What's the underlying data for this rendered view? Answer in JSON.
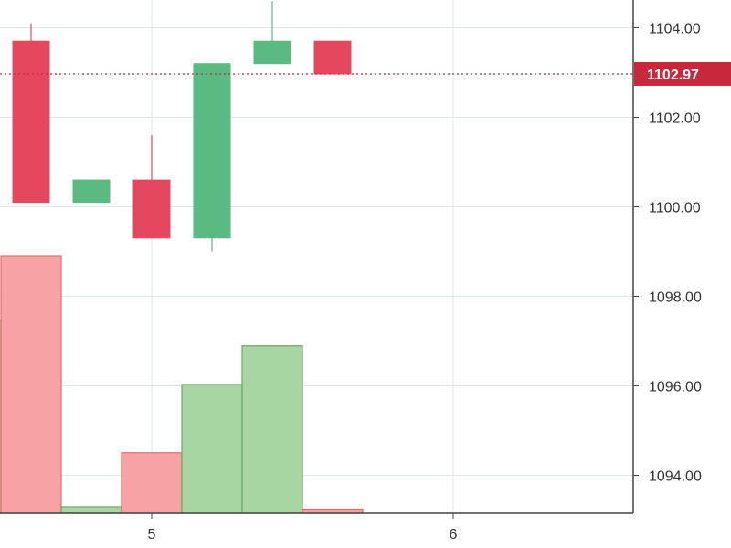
{
  "chart_data": {
    "type": "candlestick",
    "y_axis": {
      "range": [
        1093.2,
        1106.0
      ],
      "ticks": [
        {
          "value": 1094,
          "label": "1094.00"
        },
        {
          "value": 1096,
          "label": "1096.00"
        },
        {
          "value": 1098,
          "label": "1098.00"
        },
        {
          "value": 1100,
          "label": "1100.00"
        },
        {
          "value": 1102,
          "label": "1102.00"
        },
        {
          "value": 1104,
          "label": "1104.00"
        }
      ],
      "position": "right"
    },
    "x_axis": {
      "ticks": [
        {
          "value": 5,
          "label": "5"
        },
        {
          "value": 6,
          "label": "6"
        }
      ]
    },
    "grid": true,
    "last_price": {
      "value": 1102.97,
      "label": "1102.97"
    },
    "candles": [
      {
        "x": 4.6,
        "open": 1103.7,
        "high": 1104.1,
        "low": 1100.1,
        "close": 1100.1
      },
      {
        "x": 4.8,
        "open": 1100.1,
        "high": 1100.6,
        "low": 1100.1,
        "close": 1100.6
      },
      {
        "x": 5.0,
        "open": 1100.6,
        "high": 1101.6,
        "low": 1099.3,
        "close": 1099.3
      },
      {
        "x": 5.2,
        "open": 1099.3,
        "high": 1103.2,
        "low": 1099.0,
        "close": 1103.2
      },
      {
        "x": 5.4,
        "open": 1103.2,
        "high": 1104.6,
        "low": 1103.2,
        "close": 1103.7
      },
      {
        "x": 5.6,
        "open": 1103.7,
        "high": 1103.7,
        "low": 1102.97,
        "close": 1102.97
      }
    ],
    "volume_bars": [
      {
        "x": 4.4,
        "value": 0.75,
        "direction": "up"
      },
      {
        "x": 4.6,
        "value": 1.0,
        "direction": "down"
      },
      {
        "x": 4.8,
        "value": 0.025,
        "direction": "up"
      },
      {
        "x": 5.0,
        "value": 0.235,
        "direction": "down"
      },
      {
        "x": 5.2,
        "value": 0.5,
        "direction": "up"
      },
      {
        "x": 5.4,
        "value": 0.65,
        "direction": "up"
      },
      {
        "x": 5.6,
        "value": 0.016,
        "direction": "down"
      }
    ],
    "colors": {
      "up": "#5aba82",
      "down": "#e3485e",
      "volume_up": "#a8d6a2",
      "volume_up_border": "#6aa868",
      "volume_down": "#f8a3a3",
      "volume_down_border": "#d97070",
      "price_line": "#c8283c",
      "grid": "#dde8ee",
      "axis": "#444444"
    }
  }
}
